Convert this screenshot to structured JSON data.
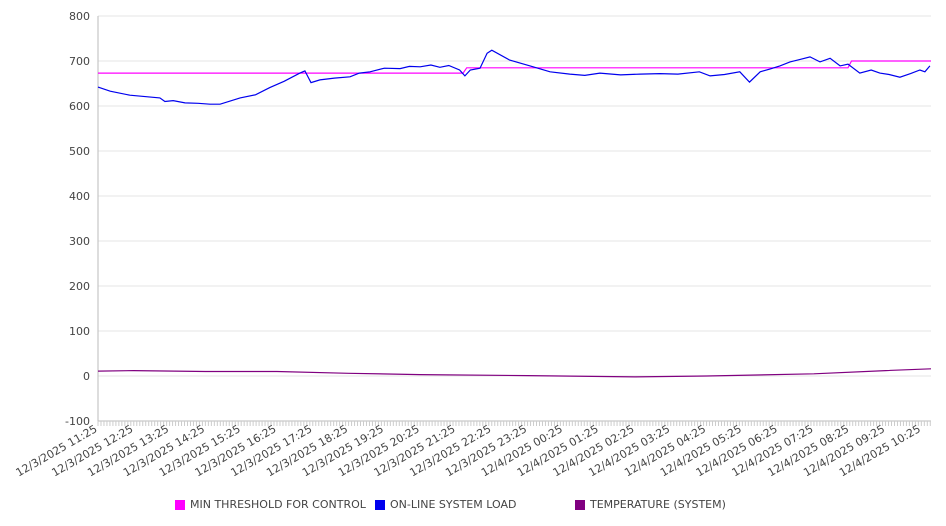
{
  "chart_data": {
    "type": "line",
    "xlabel": "",
    "ylabel": "",
    "ylim": [
      -100,
      800
    ],
    "yticks": [
      -100,
      0,
      100,
      200,
      300,
      400,
      500,
      600,
      700,
      800
    ],
    "x_unit": "hours since 12/3/2025 11:25",
    "xlim": [
      0,
      23.27
    ],
    "xtick_labels": [
      "12/3/2025 11:25",
      "12/3/2025 12:25",
      "12/3/2025 13:25",
      "12/3/2025 14:25",
      "12/3/2025 15:25",
      "12/3/2025 16:25",
      "12/3/2025 17:25",
      "12/3/2025 18:25",
      "12/3/2025 19:25",
      "12/3/2025 20:25",
      "12/3/2025 21:25",
      "12/3/2025 22:25",
      "12/3/2025 23:25",
      "12/4/2025 00:25",
      "12/4/2025 01:25",
      "12/4/2025 02:25",
      "12/4/2025 03:25",
      "12/4/2025 04:25",
      "12/4/2025 05:25",
      "12/4/2025 06:25",
      "12/4/2025 07:25",
      "12/4/2025 08:25",
      "12/4/2025 09:25",
      "12/4/2025 10:25"
    ],
    "grid": true,
    "legend_position": "bottom",
    "series": [
      {
        "name": "MIN THRESHOLD FOR CONTROL",
        "color": "#ff00ff",
        "step": true,
        "x": [
          0,
          10.2,
          10.3,
          20.95,
          21.05,
          23.27
        ],
        "y": [
          673,
          673,
          685,
          685,
          700,
          700
        ]
      },
      {
        "name": "ON-LINE SYSTEM LOAD",
        "color": "#0000ee",
        "x": [
          0,
          0.34,
          0.89,
          1.73,
          1.87,
          2.1,
          2.43,
          2.8,
          3.13,
          3.41,
          3.97,
          4.4,
          4.8,
          5.2,
          5.64,
          5.78,
          5.95,
          6.2,
          6.6,
          7.04,
          7.3,
          7.6,
          8.0,
          8.44,
          8.7,
          9.0,
          9.3,
          9.55,
          9.8,
          10.1,
          10.25,
          10.4,
          10.67,
          10.87,
          11.0,
          11.5,
          12.07,
          12.63,
          13.18,
          13.6,
          14.02,
          14.6,
          15.14,
          15.7,
          16.2,
          16.8,
          17.1,
          17.5,
          17.93,
          18.2,
          18.5,
          18.77,
          19.05,
          19.33,
          19.6,
          19.89,
          20.17,
          20.45,
          20.73,
          20.95,
          21.28,
          21.6,
          21.84,
          22.1,
          22.4,
          22.7,
          22.96,
          23.1,
          23.24
        ],
        "y": [
          642,
          633,
          624,
          618,
          610,
          612,
          607,
          606,
          604,
          604,
          618,
          625,
          641,
          655,
          673,
          678,
          652,
          658,
          662,
          665,
          673,
          676,
          684,
          683,
          688,
          687,
          691,
          686,
          690,
          680,
          667,
          680,
          684,
          717,
          724,
          702,
          689,
          676,
          671,
          668,
          673,
          669,
          671,
          672,
          671,
          676,
          667,
          670,
          676,
          653,
          676,
          682,
          689,
          698,
          703,
          709,
          698,
          706,
          689,
          693,
          673,
          680,
          673,
          670,
          664,
          672,
          680,
          676,
          689
        ]
      },
      {
        "name": "TEMPERATURE (SYSTEM)",
        "color": "#800080",
        "x": [
          0,
          1,
          3,
          5,
          7,
          9,
          12,
          15,
          17,
          20,
          22,
          23.27
        ],
        "y": [
          11,
          12,
          10,
          10,
          6,
          3,
          1,
          -2,
          0,
          5,
          12,
          16
        ]
      }
    ]
  }
}
